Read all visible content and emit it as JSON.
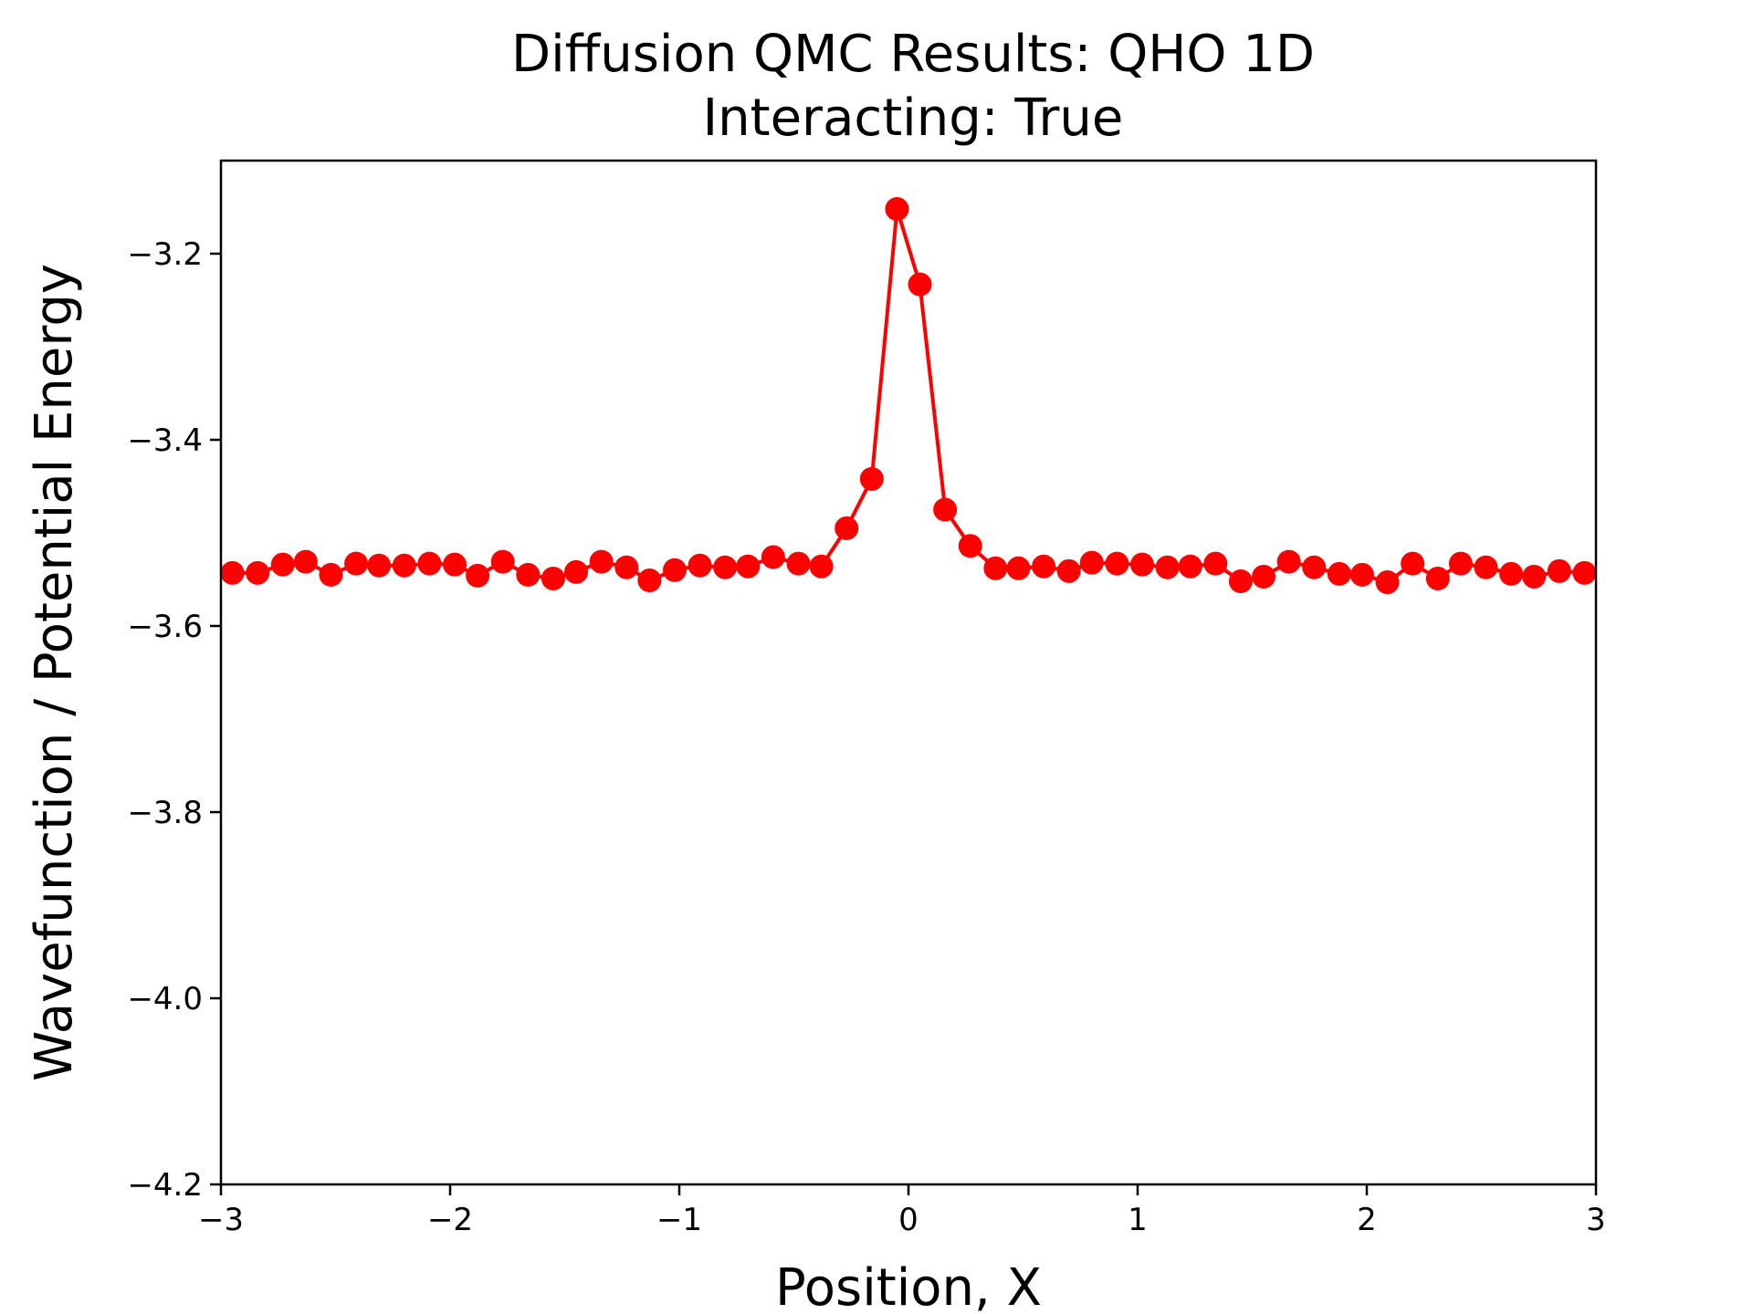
{
  "chart_data": {
    "type": "line",
    "title": "Diffusion QMC Results: QHO 1D",
    "subtitle": "Interacting: True",
    "xlabel": "Position, X",
    "ylabel": "Wavefunction / Potential Energy",
    "xlim": [
      -3,
      3
    ],
    "ylim": [
      -4.2,
      -3.1
    ],
    "x_ticks": [
      -3,
      -2,
      -1,
      0,
      1,
      2,
      3
    ],
    "x_tick_labels": [
      "−3",
      "−2",
      "−1",
      "0",
      "1",
      "2",
      "3"
    ],
    "y_ticks": [
      -4.2,
      -4.0,
      -3.8,
      -3.6,
      -3.4,
      -3.2
    ],
    "y_tick_labels": [
      "−4.2",
      "−4.0",
      "−3.8",
      "−3.6",
      "−3.4",
      "−3.2"
    ],
    "grid": false,
    "legend": "none",
    "color": "#ff0000",
    "series": [
      {
        "x": [
          -2.95,
          -2.84,
          -2.73,
          -2.63,
          -2.52,
          -2.41,
          -2.31,
          -2.2,
          -2.09,
          -1.98,
          -1.88,
          -1.77,
          -1.66,
          -1.55,
          -1.45,
          -1.34,
          -1.23,
          -1.13,
          -1.02,
          -0.91,
          -0.8,
          -0.7,
          -0.59,
          -0.48,
          -0.38,
          -0.27,
          -0.16,
          -0.05,
          0.05,
          0.16,
          0.27,
          0.38,
          0.48,
          0.59,
          0.7,
          0.8,
          0.91,
          1.02,
          1.13,
          1.23,
          1.34,
          1.45,
          1.55,
          1.66,
          1.77,
          1.88,
          1.98,
          2.09,
          2.2,
          2.31,
          2.41,
          2.52,
          2.63,
          2.73,
          2.84,
          2.95
        ],
        "values": [
          -3.543,
          -3.543,
          -3.534,
          -3.531,
          -3.545,
          -3.533,
          -3.535,
          -3.535,
          -3.533,
          -3.534,
          -3.546,
          -3.531,
          -3.545,
          -3.549,
          -3.542,
          -3.531,
          -3.537,
          -3.551,
          -3.54,
          -3.535,
          -3.537,
          -3.536,
          -3.526,
          -3.533,
          -3.536,
          -3.495,
          -3.442,
          -3.152,
          -3.233,
          -3.475,
          -3.514,
          -3.538,
          -3.538,
          -3.536,
          -3.541,
          -3.532,
          -3.533,
          -3.534,
          -3.537,
          -3.536,
          -3.533,
          -3.552,
          -3.547,
          -3.531,
          -3.537,
          -3.544,
          -3.545,
          -3.553,
          -3.533,
          -3.549,
          -3.533,
          -3.537,
          -3.544,
          -3.547,
          -3.541,
          -3.543
        ]
      }
    ]
  }
}
